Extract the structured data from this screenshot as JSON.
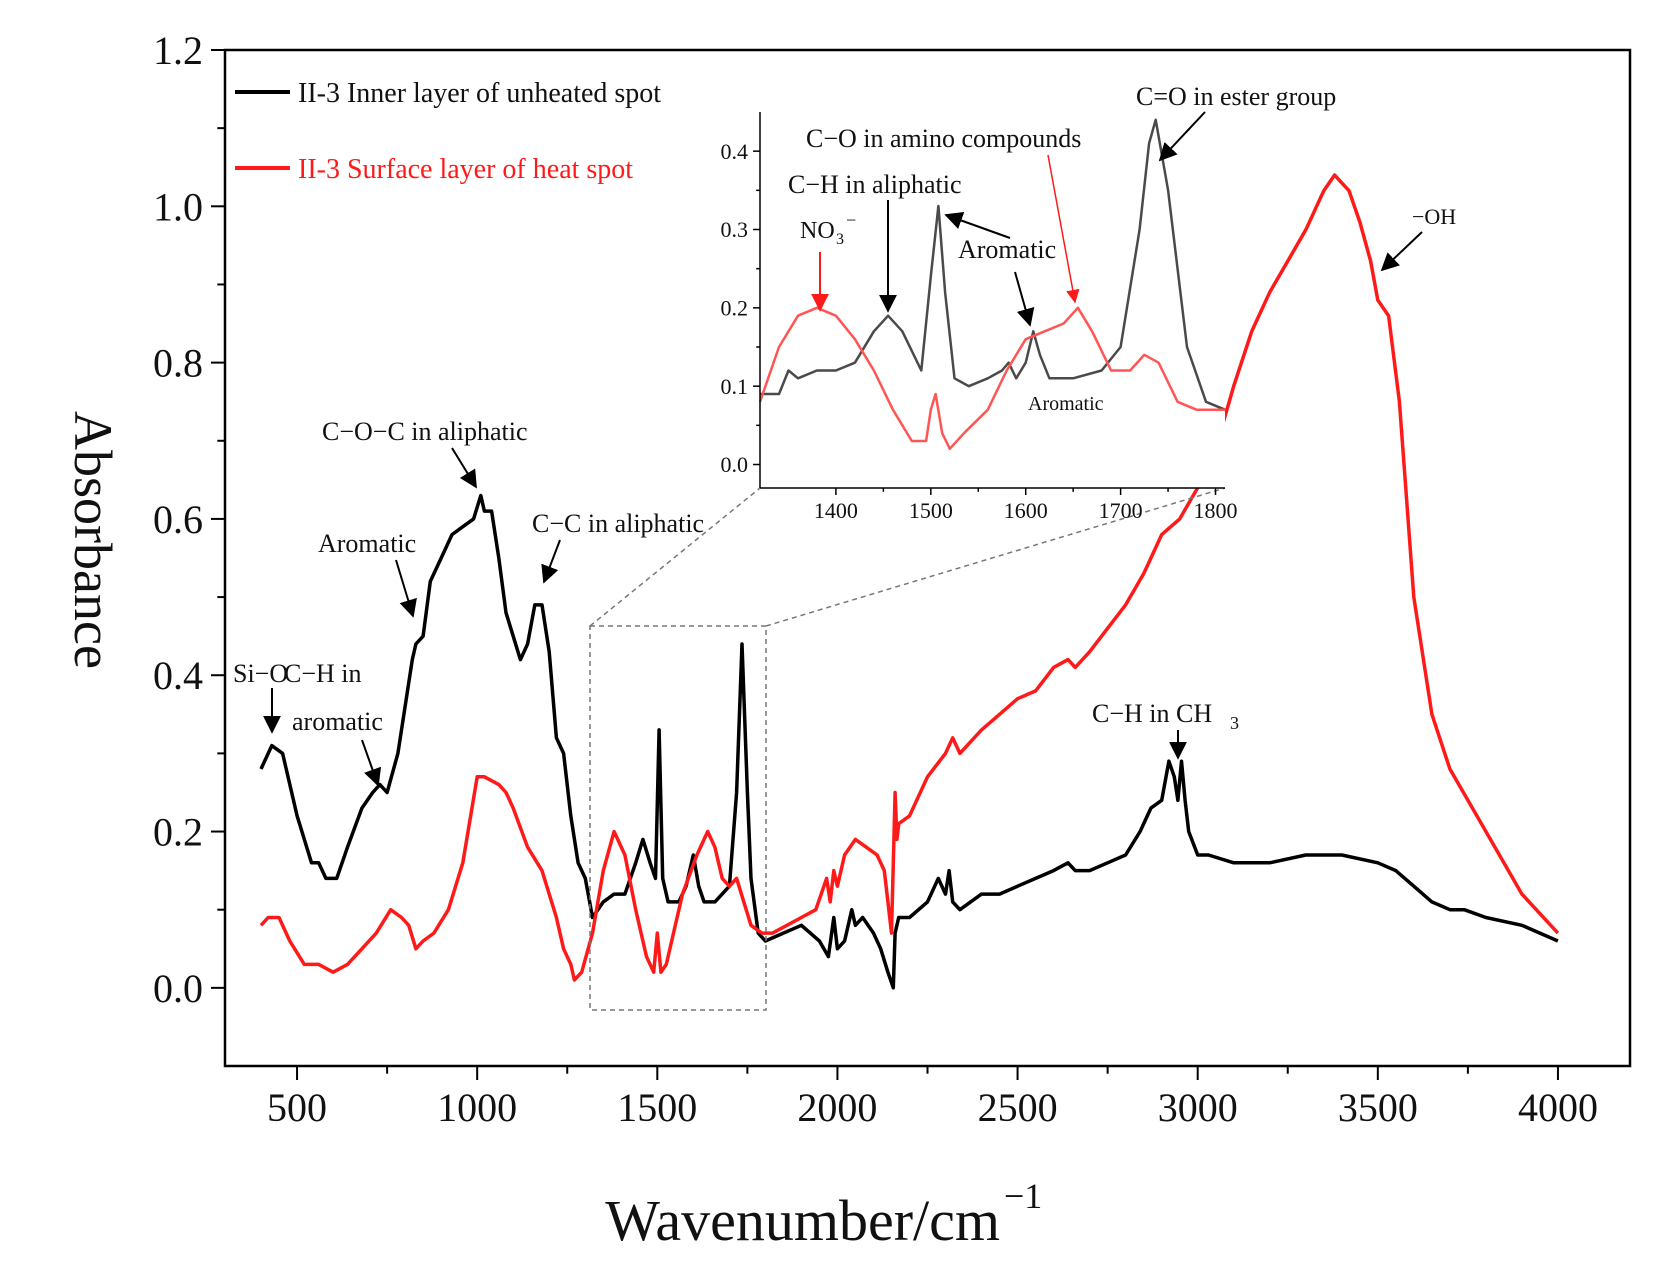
{
  "chart_data": [
    {
      "type": "line",
      "title": "",
      "xlabel": "Wavenumber/cm",
      "xlabel_superscript": "−1",
      "ylabel": "Absorbance",
      "xlim": [
        300,
        4200
      ],
      "ylim": [
        -0.1,
        1.2
      ],
      "xticks": [
        500,
        1000,
        1500,
        2000,
        2500,
        3000,
        3500,
        4000
      ],
      "xtick_labels": [
        "500",
        "1000",
        "1500",
        "2000",
        "2500",
        "3000",
        "3500",
        "4000"
      ],
      "yticks": [
        0.0,
        0.2,
        0.4,
        0.6,
        0.8,
        1.0,
        1.2
      ],
      "ytick_labels": [
        "0.0",
        "0.2",
        "0.4",
        "0.6",
        "0.8",
        "1.0",
        "1.2"
      ],
      "grid": false,
      "legend": "top-left",
      "series": [
        {
          "name": "II-3 Inner layer of unheated spot",
          "color": "#000000",
          "x": [
            400,
            430,
            460,
            500,
            540,
            560,
            580,
            610,
            640,
            680,
            710,
            730,
            750,
            780,
            820,
            830,
            850,
            870,
            900,
            930,
            960,
            990,
            1010,
            1020,
            1040,
            1060,
            1080,
            1100,
            1120,
            1140,
            1160,
            1180,
            1200,
            1220,
            1240,
            1260,
            1280,
            1300,
            1320,
            1350,
            1380,
            1410,
            1440,
            1460,
            1480,
            1495,
            1505,
            1515,
            1530,
            1560,
            1580,
            1600,
            1615,
            1630,
            1660,
            1700,
            1720,
            1735,
            1750,
            1760,
            1780,
            1800,
            1850,
            1900,
            1950,
            1975,
            1990,
            2000,
            2020,
            2040,
            2050,
            2070,
            2100,
            2120,
            2140,
            2155,
            2160,
            2170,
            2200,
            2250,
            2280,
            2300,
            2310,
            2320,
            2340,
            2400,
            2450,
            2500,
            2550,
            2600,
            2640,
            2660,
            2700,
            2750,
            2800,
            2840,
            2870,
            2900,
            2920,
            2935,
            2945,
            2955,
            2965,
            2975,
            3000,
            3030,
            3100,
            3200,
            3300,
            3400,
            3500,
            3550,
            3600,
            3650,
            3700,
            3740,
            3800,
            3900,
            4000
          ],
          "y": [
            0.28,
            0.31,
            0.3,
            0.22,
            0.16,
            0.16,
            0.14,
            0.14,
            0.18,
            0.23,
            0.25,
            0.26,
            0.25,
            0.3,
            0.42,
            0.44,
            0.45,
            0.52,
            0.55,
            0.58,
            0.59,
            0.6,
            0.63,
            0.61,
            0.61,
            0.55,
            0.48,
            0.45,
            0.42,
            0.44,
            0.49,
            0.49,
            0.43,
            0.32,
            0.3,
            0.22,
            0.16,
            0.14,
            0.09,
            0.11,
            0.12,
            0.12,
            0.16,
            0.19,
            0.16,
            0.14,
            0.33,
            0.14,
            0.11,
            0.11,
            0.13,
            0.17,
            0.13,
            0.11,
            0.11,
            0.13,
            0.25,
            0.44,
            0.25,
            0.14,
            0.07,
            0.06,
            0.07,
            0.08,
            0.06,
            0.04,
            0.09,
            0.05,
            0.06,
            0.1,
            0.08,
            0.09,
            0.07,
            0.05,
            0.02,
            0.0,
            0.07,
            0.09,
            0.09,
            0.11,
            0.14,
            0.12,
            0.15,
            0.11,
            0.1,
            0.12,
            0.12,
            0.13,
            0.14,
            0.15,
            0.16,
            0.15,
            0.15,
            0.16,
            0.17,
            0.2,
            0.23,
            0.24,
            0.29,
            0.27,
            0.24,
            0.29,
            0.24,
            0.2,
            0.17,
            0.17,
            0.16,
            0.16,
            0.17,
            0.17,
            0.16,
            0.15,
            0.13,
            0.11,
            0.1,
            0.1,
            0.09,
            0.08,
            0.06
          ]
        },
        {
          "name": "II-3 Surface layer of heat spot",
          "color": "#ff1a1a",
          "x": [
            400,
            420,
            450,
            480,
            520,
            560,
            600,
            640,
            680,
            720,
            760,
            790,
            810,
            830,
            850,
            880,
            920,
            960,
            1000,
            1020,
            1060,
            1080,
            1100,
            1140,
            1180,
            1220,
            1240,
            1260,
            1270,
            1290,
            1320,
            1350,
            1380,
            1410,
            1440,
            1470,
            1490,
            1500,
            1510,
            1525,
            1545,
            1570,
            1610,
            1640,
            1660,
            1680,
            1700,
            1720,
            1740,
            1760,
            1790,
            1820,
            1860,
            1900,
            1940,
            1970,
            1980,
            1990,
            2000,
            2020,
            2050,
            2080,
            2110,
            2130,
            2150,
            2160,
            2165,
            2170,
            2200,
            2250,
            2300,
            2320,
            2340,
            2400,
            2450,
            2500,
            2550,
            2600,
            2640,
            2660,
            2700,
            2750,
            2800,
            2850,
            2900,
            2950,
            3000,
            3050,
            3100,
            3150,
            3200,
            3250,
            3300,
            3350,
            3380,
            3400,
            3420,
            3450,
            3480,
            3500,
            3530,
            3560,
            3600,
            3650,
            3700,
            3800,
            3900,
            4000
          ],
          "y": [
            0.08,
            0.09,
            0.09,
            0.06,
            0.03,
            0.03,
            0.02,
            0.03,
            0.05,
            0.07,
            0.1,
            0.09,
            0.08,
            0.05,
            0.06,
            0.07,
            0.1,
            0.16,
            0.27,
            0.27,
            0.26,
            0.25,
            0.23,
            0.18,
            0.15,
            0.09,
            0.05,
            0.03,
            0.01,
            0.02,
            0.07,
            0.15,
            0.2,
            0.17,
            0.1,
            0.04,
            0.02,
            0.07,
            0.02,
            0.03,
            0.07,
            0.12,
            0.17,
            0.2,
            0.18,
            0.14,
            0.13,
            0.14,
            0.11,
            0.08,
            0.07,
            0.07,
            0.08,
            0.09,
            0.1,
            0.14,
            0.11,
            0.15,
            0.13,
            0.17,
            0.19,
            0.18,
            0.17,
            0.15,
            0.07,
            0.25,
            0.19,
            0.21,
            0.22,
            0.27,
            0.3,
            0.32,
            0.3,
            0.33,
            0.35,
            0.37,
            0.38,
            0.41,
            0.42,
            0.41,
            0.43,
            0.46,
            0.49,
            0.53,
            0.58,
            0.6,
            0.64,
            0.69,
            0.77,
            0.84,
            0.89,
            0.93,
            0.97,
            1.02,
            1.04,
            1.03,
            1.02,
            0.98,
            0.93,
            0.88,
            0.86,
            0.75,
            0.5,
            0.35,
            0.28,
            0.2,
            0.12,
            0.07
          ]
        }
      ],
      "annotations": [
        "Si−O",
        "C−H in",
        "aromatic",
        "Aromatic",
        "C−O−C in aliphatic",
        "C−C in aliphatic",
        "C−H in CH",
        "−OH"
      ],
      "annotation_subscript": "3"
    },
    {
      "type": "line",
      "title": "",
      "xlabel": "",
      "ylabel": "",
      "xlim": [
        1320,
        1810
      ],
      "ylim": [
        -0.03,
        0.45
      ],
      "xticks": [
        1400,
        1500,
        1600,
        1700,
        1800
      ],
      "xtick_labels": [
        "1400",
        "1500",
        "1600",
        "1700",
        "1800"
      ],
      "yticks": [
        0.0,
        0.1,
        0.2,
        0.3,
        0.4
      ],
      "ytick_labels": [
        "0.0",
        "0.1",
        "0.2",
        "0.3",
        "0.4"
      ],
      "grid": false,
      "legend": "none",
      "series": [
        {
          "name": "II-3 Inner layer of unheated spot",
          "color": "#4a4a4a",
          "x": [
            1320,
            1340,
            1350,
            1360,
            1380,
            1400,
            1420,
            1440,
            1455,
            1470,
            1490,
            1500,
            1508,
            1515,
            1525,
            1540,
            1560,
            1575,
            1582,
            1590,
            1600,
            1608,
            1615,
            1625,
            1650,
            1680,
            1700,
            1720,
            1730,
            1737,
            1750,
            1770,
            1790,
            1810
          ],
          "y": [
            0.09,
            0.09,
            0.12,
            0.11,
            0.12,
            0.12,
            0.13,
            0.17,
            0.19,
            0.17,
            0.12,
            0.24,
            0.33,
            0.22,
            0.11,
            0.1,
            0.11,
            0.12,
            0.13,
            0.11,
            0.13,
            0.17,
            0.14,
            0.11,
            0.11,
            0.12,
            0.15,
            0.3,
            0.41,
            0.44,
            0.35,
            0.15,
            0.08,
            0.07
          ]
        },
        {
          "name": "II-3 Surface layer of heat spot",
          "color": "#ff5555",
          "x": [
            1320,
            1340,
            1360,
            1380,
            1400,
            1420,
            1440,
            1460,
            1480,
            1495,
            1500,
            1505,
            1512,
            1520,
            1535,
            1560,
            1580,
            1600,
            1620,
            1640,
            1655,
            1670,
            1690,
            1710,
            1725,
            1740,
            1760,
            1780,
            1810
          ],
          "y": [
            0.08,
            0.15,
            0.19,
            0.2,
            0.19,
            0.16,
            0.12,
            0.07,
            0.03,
            0.03,
            0.07,
            0.09,
            0.04,
            0.02,
            0.04,
            0.07,
            0.12,
            0.16,
            0.17,
            0.18,
            0.2,
            0.17,
            0.12,
            0.12,
            0.14,
            0.13,
            0.08,
            0.07,
            0.07
          ]
        }
      ],
      "annotations": [
        "C=O in ester group",
        "C−O in amino compounds",
        "C−H in aliphatic",
        "NO",
        "Aromatic",
        "Aromatic"
      ],
      "annotation_no3_sub": "3",
      "annotation_no3_sup": "−"
    }
  ]
}
